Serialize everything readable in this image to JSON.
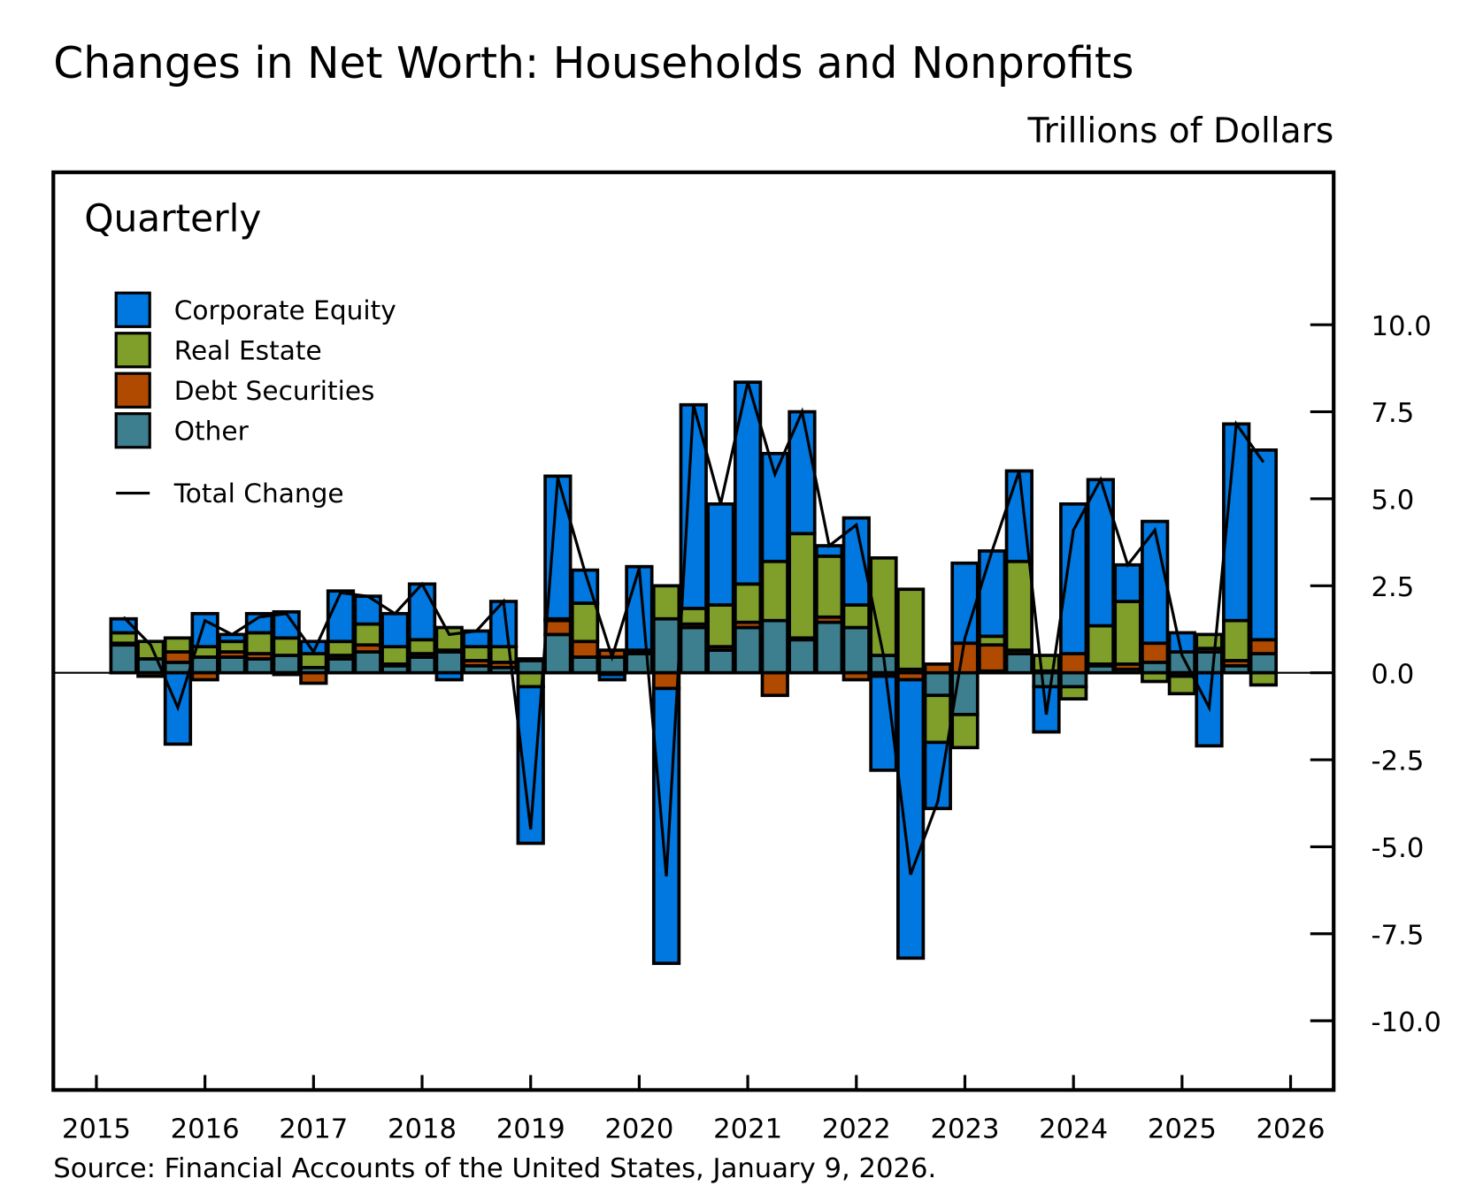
{
  "chart_data": {
    "type": "bar",
    "stacked": true,
    "title": "Changes in Net Worth: Households and Nonprofits",
    "unit_label": "Trillions of Dollars",
    "panel_label": "Quarterly",
    "source": "Source: Financial Accounts of the United States, January 9, 2026.",
    "ylim": [
      -12,
      12.5
    ],
    "yticks": [
      10.0,
      7.5,
      5.0,
      2.5,
      0.0,
      -2.5,
      -5.0,
      -7.5,
      -10.0
    ],
    "ytick_labels": [
      "10.0",
      "7.5",
      "5.0",
      "2.5",
      "0.0",
      "-2.5",
      "-5.0",
      "-7.5",
      "-10.0"
    ],
    "xtick_labels": [
      "2015",
      "2016",
      "2017",
      "2018",
      "2019",
      "2020",
      "2021",
      "2022",
      "2023",
      "2024",
      "2025",
      "2026"
    ],
    "grid": false,
    "legend_placement": "top-left",
    "categories": [
      "2015Q1",
      "2015Q2",
      "2015Q3",
      "2015Q4",
      "2016Q1",
      "2016Q2",
      "2016Q3",
      "2016Q4",
      "2017Q1",
      "2017Q2",
      "2017Q3",
      "2017Q4",
      "2018Q1",
      "2018Q2",
      "2018Q3",
      "2018Q4",
      "2019Q1",
      "2019Q2",
      "2019Q3",
      "2019Q4",
      "2020Q1",
      "2020Q2",
      "2020Q3",
      "2020Q4",
      "2021Q1",
      "2021Q2",
      "2021Q3",
      "2021Q4",
      "2022Q1",
      "2022Q2",
      "2022Q3",
      "2022Q4",
      "2023Q1",
      "2023Q2",
      "2023Q3",
      "2023Q4",
      "2024Q1",
      "2024Q2",
      "2024Q3",
      "2024Q4",
      "2025Q1",
      "2025Q2",
      "2025Q3"
    ],
    "series": [
      {
        "name": "Other",
        "color": "#3d7f8f",
        "values": [
          0.8,
          0.4,
          0.3,
          0.45,
          0.45,
          0.4,
          0.5,
          0.15,
          0.4,
          0.6,
          0.2,
          0.45,
          0.6,
          0.2,
          0.15,
          0.35,
          1.1,
          0.45,
          0.45,
          0.55,
          1.55,
          1.3,
          0.65,
          1.3,
          1.5,
          0.95,
          1.45,
          1.3,
          0.5,
          0.1,
          -0.65,
          -1.2,
          0.05,
          0.55,
          -0.4,
          -0.4,
          0.2,
          0.1,
          0.3,
          0.6,
          0.6,
          0.2,
          0.55
        ]
      },
      {
        "name": "Debt Securities",
        "color": "#b04a00",
        "values": [
          0.05,
          -0.1,
          0.3,
          -0.2,
          0.15,
          0.15,
          -0.05,
          -0.3,
          0.1,
          0.2,
          0.05,
          0.1,
          0.05,
          0.15,
          0.15,
          0.05,
          0.4,
          0.45,
          0.2,
          0.05,
          -0.45,
          0.1,
          0.1,
          0.15,
          -0.65,
          0.05,
          0.15,
          -0.2,
          -0.1,
          -0.2,
          0.25,
          0.85,
          0.75,
          0.1,
          0.05,
          0.55,
          0.05,
          0.15,
          0.55,
          -0.1,
          0.1,
          0.15,
          0.4
        ]
      },
      {
        "name": "Real Estate",
        "color": "#7f9f2a",
        "values": [
          0.3,
          0.5,
          0.4,
          0.3,
          0.3,
          0.6,
          0.5,
          0.4,
          0.4,
          0.6,
          0.5,
          0.4,
          0.65,
          0.4,
          0.45,
          -0.4,
          0.05,
          1.1,
          -0.05,
          0.05,
          0.95,
          0.45,
          1.2,
          1.1,
          1.7,
          3.0,
          1.75,
          0.65,
          2.8,
          2.3,
          -1.35,
          -0.95,
          0.25,
          2.55,
          0.45,
          -0.35,
          1.1,
          1.8,
          -0.25,
          -0.5,
          0.4,
          1.15,
          -0.35
        ]
      },
      {
        "name": "Corporate Equity",
        "color": "#0078e0",
        "values": [
          0.4,
          0.0,
          -2.05,
          0.95,
          0.2,
          0.55,
          0.75,
          0.35,
          1.45,
          0.8,
          0.95,
          1.6,
          -0.2,
          0.45,
          1.3,
          -4.5,
          4.1,
          0.95,
          -0.15,
          2.4,
          -7.9,
          5.85,
          2.9,
          5.8,
          3.1,
          3.5,
          0.3,
          2.5,
          -2.7,
          -8.0,
          -1.9,
          2.3,
          2.45,
          2.6,
          -1.3,
          4.3,
          4.2,
          1.05,
          3.5,
          0.55,
          -2.1,
          5.65,
          5.45
        ]
      }
    ],
    "line_series": {
      "name": "Total Change",
      "color": "#000000",
      "values": [
        1.6,
        0.8,
        -1.0,
        1.5,
        1.1,
        1.6,
        1.7,
        0.6,
        2.3,
        2.2,
        1.7,
        2.55,
        1.1,
        1.2,
        2.05,
        -4.5,
        5.6,
        2.9,
        0.45,
        3.0,
        -5.85,
        7.7,
        4.85,
        8.35,
        5.7,
        7.5,
        3.65,
        4.25,
        0.5,
        -5.8,
        -3.7,
        1.0,
        3.5,
        5.8,
        -1.2,
        4.1,
        5.55,
        3.1,
        4.1,
        0.5,
        -1.0,
        7.15,
        6.05
      ]
    }
  },
  "legend": [
    {
      "label": "Corporate Equity",
      "color": "#0078e0"
    },
    {
      "label": "Real Estate",
      "color": "#7f9f2a"
    },
    {
      "label": "Debt Securities",
      "color": "#b04a00"
    },
    {
      "label": "Other",
      "color": "#3d7f8f"
    }
  ],
  "legend_line_label": "Total Change"
}
